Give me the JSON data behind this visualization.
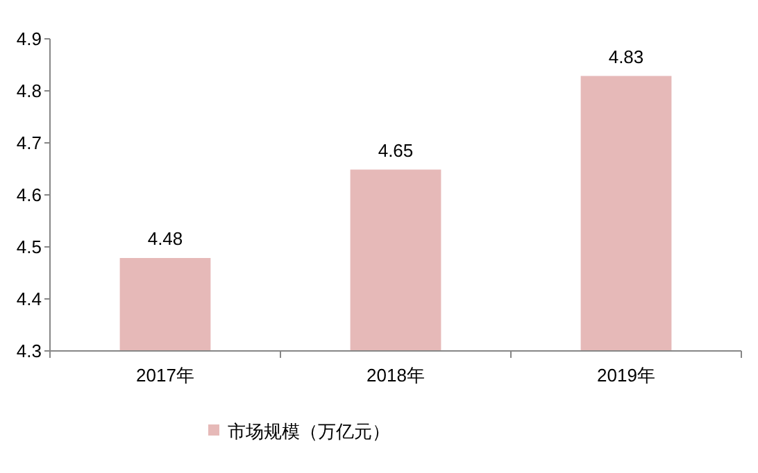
{
  "chart_data": {
    "type": "bar",
    "categories": [
      "2017年",
      "2018年",
      "2019年"
    ],
    "series": [
      {
        "name": "市场规模（万亿元）",
        "color": "#e6b9b8",
        "values": [
          4.48,
          4.65,
          4.83
        ]
      }
    ],
    "ylim": [
      4.3,
      4.9
    ],
    "yticks": [
      4.3,
      4.4,
      4.5,
      4.6,
      4.7,
      4.8,
      4.9
    ],
    "data_labels": true,
    "legend": "bottom",
    "grid": false
  }
}
